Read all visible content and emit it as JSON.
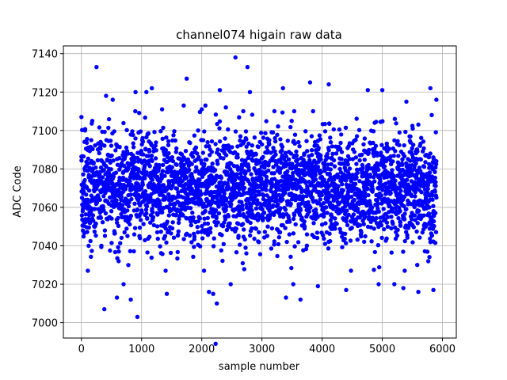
{
  "chart_data": {
    "type": "scatter",
    "title": "channel074 higain raw data",
    "xlabel": "sample number",
    "ylabel": "ADC Code",
    "xlim": [
      -300,
      6230
    ],
    "ylim": [
      6992,
      7144
    ],
    "xticks": [
      0,
      1000,
      2000,
      3000,
      4000,
      5000,
      6000
    ],
    "yticks": [
      7000,
      7020,
      7040,
      7060,
      7080,
      7100,
      7120,
      7140
    ],
    "grid": true,
    "marker_color": "#0000ff",
    "series": [
      {
        "n_samples": 5900,
        "center": 7070,
        "points": [
          [
            0,
            7107
          ],
          [
            25,
            7048
          ],
          [
            60,
            7100
          ],
          [
            120,
            7040
          ],
          [
            180,
            7105
          ],
          [
            250,
            7133
          ],
          [
            380,
            7007
          ],
          [
            410,
            7118
          ],
          [
            520,
            7116
          ],
          [
            590,
            7013
          ],
          [
            700,
            7020
          ],
          [
            780,
            7030
          ],
          [
            820,
            7012
          ],
          [
            900,
            7120
          ],
          [
            930,
            7003
          ],
          [
            1080,
            7120
          ],
          [
            1170,
            7122
          ],
          [
            1340,
            7111
          ],
          [
            1420,
            7015
          ],
          [
            1700,
            7113
          ],
          [
            1750,
            7127
          ],
          [
            2000,
            7111
          ],
          [
            2060,
            7113
          ],
          [
            2120,
            7016
          ],
          [
            2190,
            7015
          ],
          [
            2230,
            6989
          ],
          [
            2250,
            7010
          ],
          [
            2300,
            7121
          ],
          [
            2400,
            7112
          ],
          [
            2480,
            7020
          ],
          [
            2560,
            7138
          ],
          [
            2690,
            7110
          ],
          [
            2760,
            7133
          ],
          [
            2800,
            7120
          ],
          [
            3350,
            7122
          ],
          [
            3400,
            7013
          ],
          [
            3520,
            7020
          ],
          [
            3640,
            7012
          ],
          [
            3800,
            7125
          ],
          [
            3930,
            7019
          ],
          [
            4110,
            7124
          ],
          [
            4400,
            7017
          ],
          [
            4760,
            7121
          ],
          [
            4940,
            7020
          ],
          [
            5000,
            7121
          ],
          [
            5200,
            7020
          ],
          [
            5350,
            7018
          ],
          [
            5400,
            7115
          ],
          [
            5600,
            7016
          ],
          [
            5800,
            7122
          ],
          [
            5850,
            7017
          ],
          [
            5900,
            7116
          ]
        ]
      }
    ]
  }
}
